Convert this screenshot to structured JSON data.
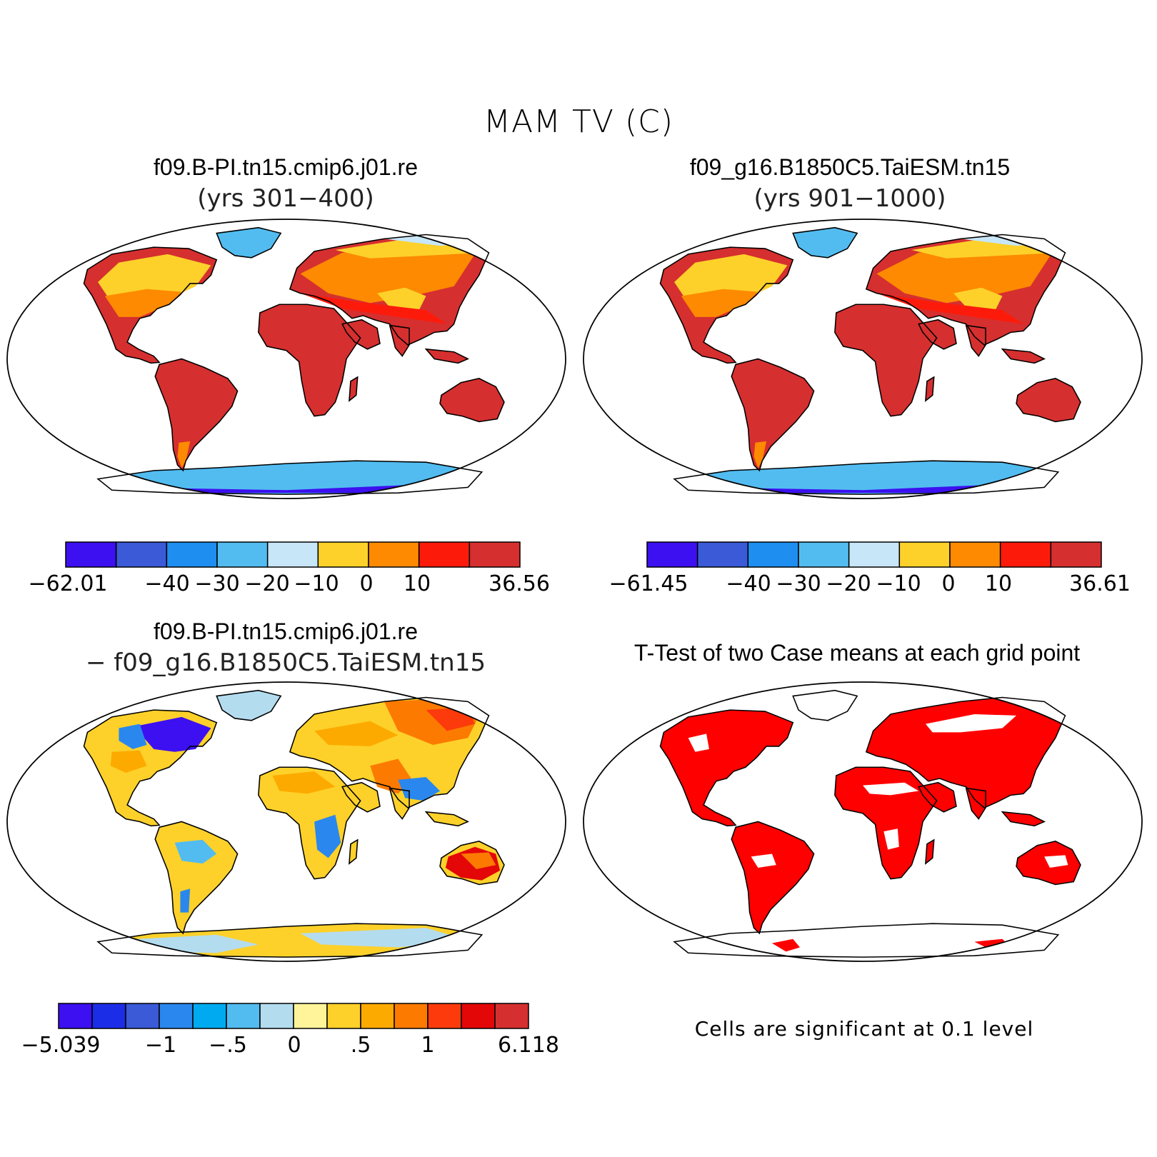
{
  "main_title": "MAM TV (C)",
  "panels": [
    {
      "title": "f09.B-PI.tn15.cmip6.j01.re",
      "subtitle": "(yrs 301−400)"
    },
    {
      "title": "f09_g16.B1850C5.TaiESM.tn15",
      "subtitle": "(yrs 901−1000)"
    },
    {
      "title": "f09.B-PI.tn15.cmip6.j01.re",
      "subtitle": "− f09_g16.B1850C5.TaiESM.tn15"
    },
    {
      "title": "T-Test of two Case means at each grid point",
      "subtitle": ""
    }
  ],
  "colorbars": [
    {
      "colors": [
        "#3c10f0",
        "#3a5ad8",
        "#1e8ef0",
        "#52bcf0",
        "#c7e6f7",
        "#fdd12a",
        "#fd8a00",
        "#fc1b0b",
        "#d62f2f"
      ],
      "tick_labels": [
        "−62.01",
        "−40",
        "−30",
        "−20",
        "−10",
        "0",
        "10",
        "36.56"
      ]
    },
    {
      "colors": [
        "#3c10f0",
        "#3a5ad8",
        "#1e8ef0",
        "#52bcf0",
        "#c7e6f7",
        "#fdd12a",
        "#fd8a00",
        "#fc1b0b",
        "#d62f2f"
      ],
      "tick_labels": [
        "−61.45",
        "−40",
        "−30",
        "−20",
        "−10",
        "0",
        "10",
        "36.61"
      ]
    },
    {
      "colors": [
        "#3c10f0",
        "#1c2de8",
        "#3a5ad8",
        "#2a87ee",
        "#00aaf0",
        "#52bcf0",
        "#b4dcef",
        "#fff499",
        "#fdd12a",
        "#fdaa00",
        "#fc7a00",
        "#fc3a0b",
        "#e30707",
        "#d62f2f"
      ],
      "tick_labels": [
        "−5.039",
        "−1",
        "−.5",
        "0",
        ".5",
        "1",
        "6.118"
      ]
    }
  ],
  "significance_note": "Cells are significant at 0.1 level",
  "significance_color": "#ff0000"
}
